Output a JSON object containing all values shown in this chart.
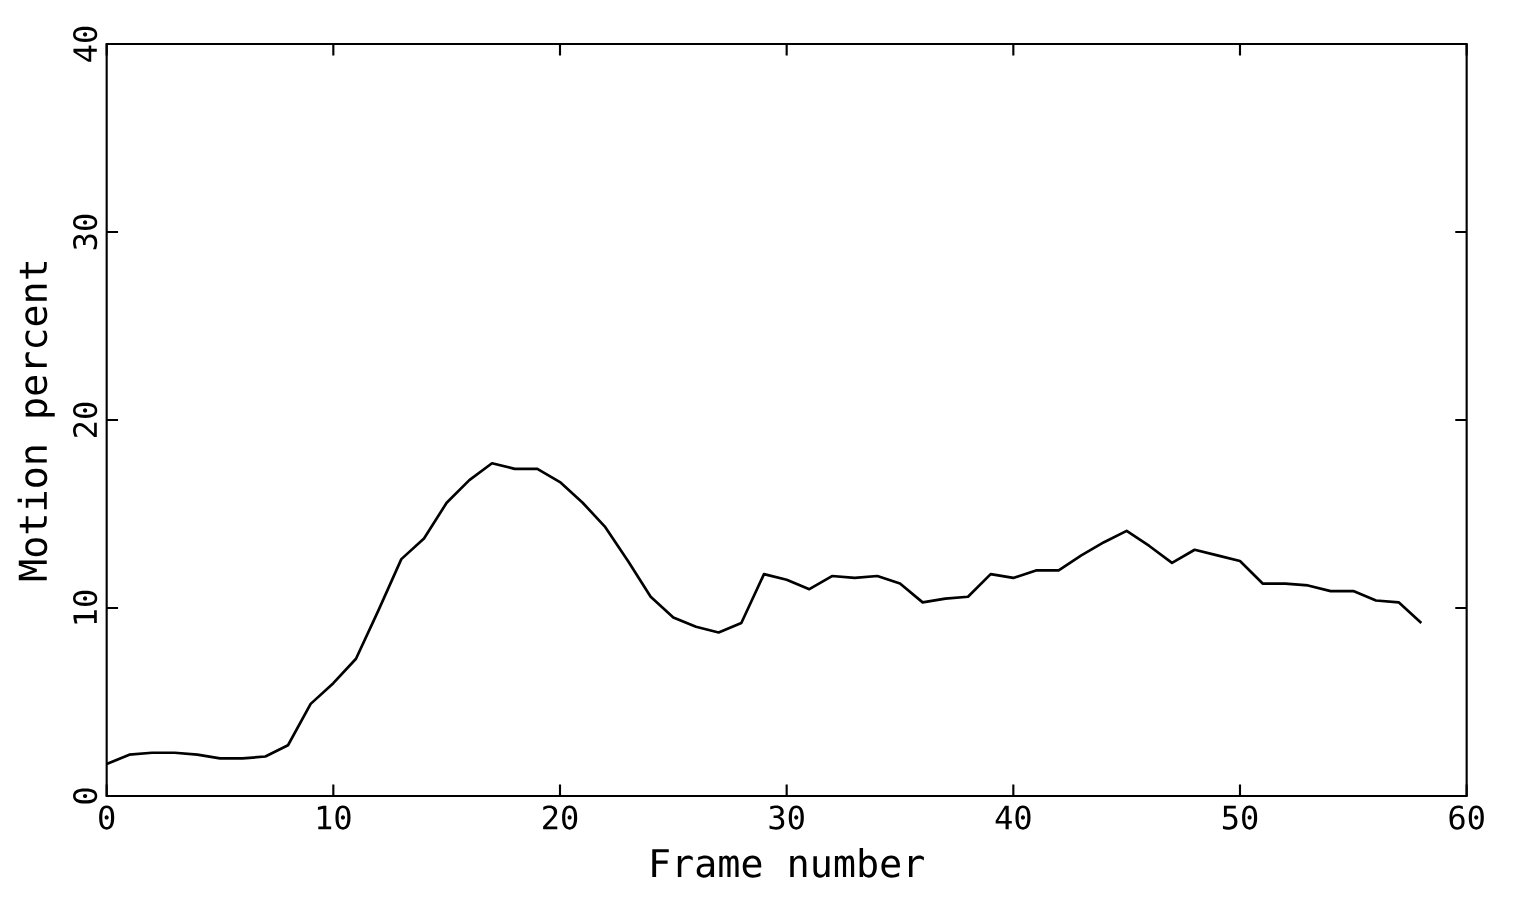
{
  "chart_data": {
    "type": "line",
    "xlabel": "Frame number",
    "ylabel": "Motion percent",
    "xlim": [
      0,
      60
    ],
    "ylim": [
      0,
      40
    ],
    "xticks": [
      0,
      10,
      20,
      30,
      40,
      50,
      60
    ],
    "yticks": [
      0,
      10,
      20,
      30,
      40
    ],
    "grid": false,
    "marker": "none",
    "line_style": "solid",
    "x": [
      0,
      1,
      2,
      3,
      4,
      5,
      6,
      7,
      8,
      9,
      10,
      11,
      12,
      13,
      14,
      15,
      16,
      17,
      18,
      19,
      20,
      21,
      22,
      23,
      24,
      25,
      26,
      27,
      28,
      29,
      30,
      31,
      32,
      33,
      34,
      35,
      36,
      37,
      38,
      39,
      40,
      41,
      42,
      43,
      44,
      45,
      46,
      47,
      48,
      49,
      50,
      51,
      52,
      53,
      54,
      55,
      56,
      57,
      58
    ],
    "series": [
      {
        "color": "#000000",
        "values": [
          1.7,
          2.2,
          2.3,
          2.3,
          2.2,
          2.0,
          2.0,
          2.1,
          2.7,
          4.9,
          6.0,
          7.3,
          9.9,
          12.6,
          13.7,
          15.6,
          16.8,
          17.7,
          17.4,
          17.4,
          16.7,
          15.6,
          14.3,
          12.5,
          10.6,
          9.5,
          9.0,
          8.7,
          9.2,
          11.8,
          11.5,
          11.0,
          11.7,
          11.6,
          11.7,
          11.3,
          10.3,
          10.5,
          10.6,
          11.8,
          11.6,
          12.0,
          12.0,
          12.8,
          13.5,
          14.1,
          13.3,
          12.4,
          13.1,
          12.8,
          12.5,
          11.3,
          11.3,
          11.2,
          10.9,
          10.9,
          10.4,
          10.3,
          9.2
        ]
      }
    ]
  }
}
